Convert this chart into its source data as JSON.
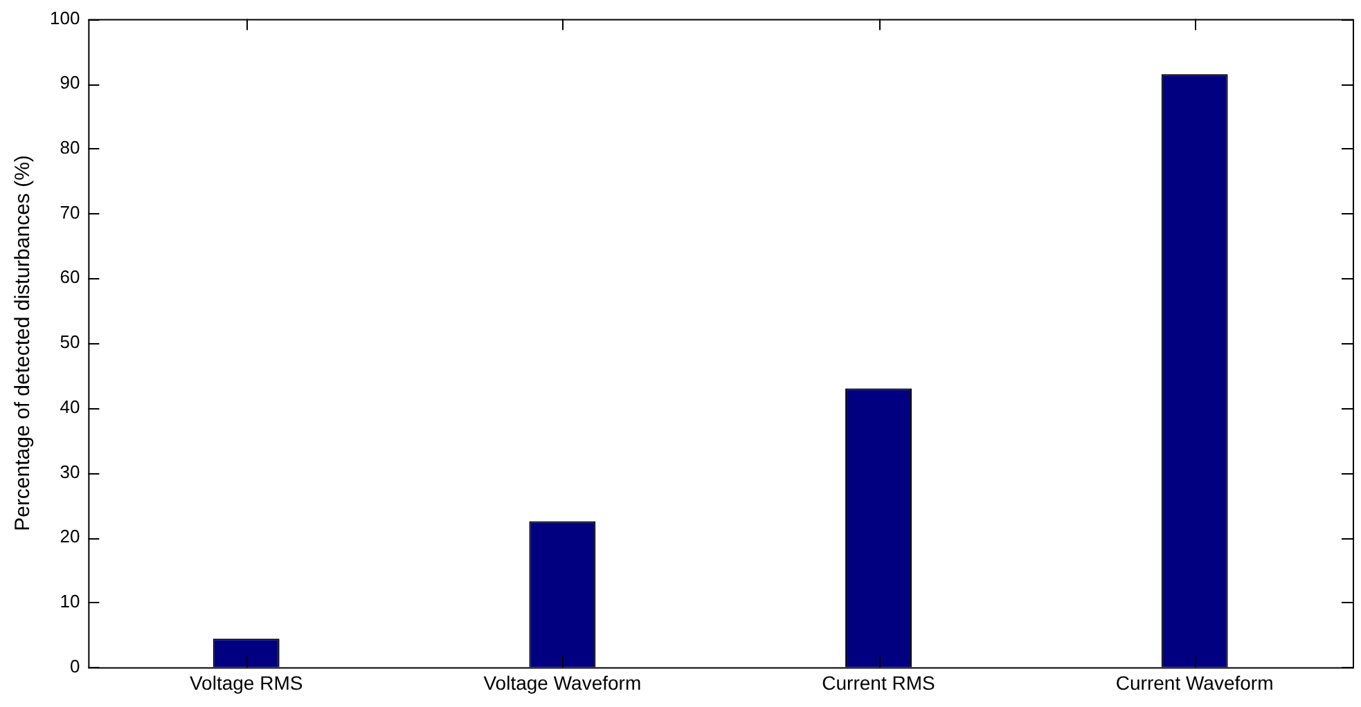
{
  "chart_data": {
    "type": "bar",
    "ylabel": "Percentage of detected disturbances (%)",
    "categories": [
      "Voltage RMS",
      "Voltage Waveform",
      "Current RMS",
      "Current Waveform"
    ],
    "values": [
      4.4,
      22.5,
      43,
      91.5
    ],
    "color": "#000080",
    "ylim": [
      0,
      100
    ],
    "yticks": [
      0,
      10,
      20,
      30,
      40,
      50,
      60,
      70,
      80,
      90,
      100
    ],
    "grid": false,
    "legend": false
  }
}
